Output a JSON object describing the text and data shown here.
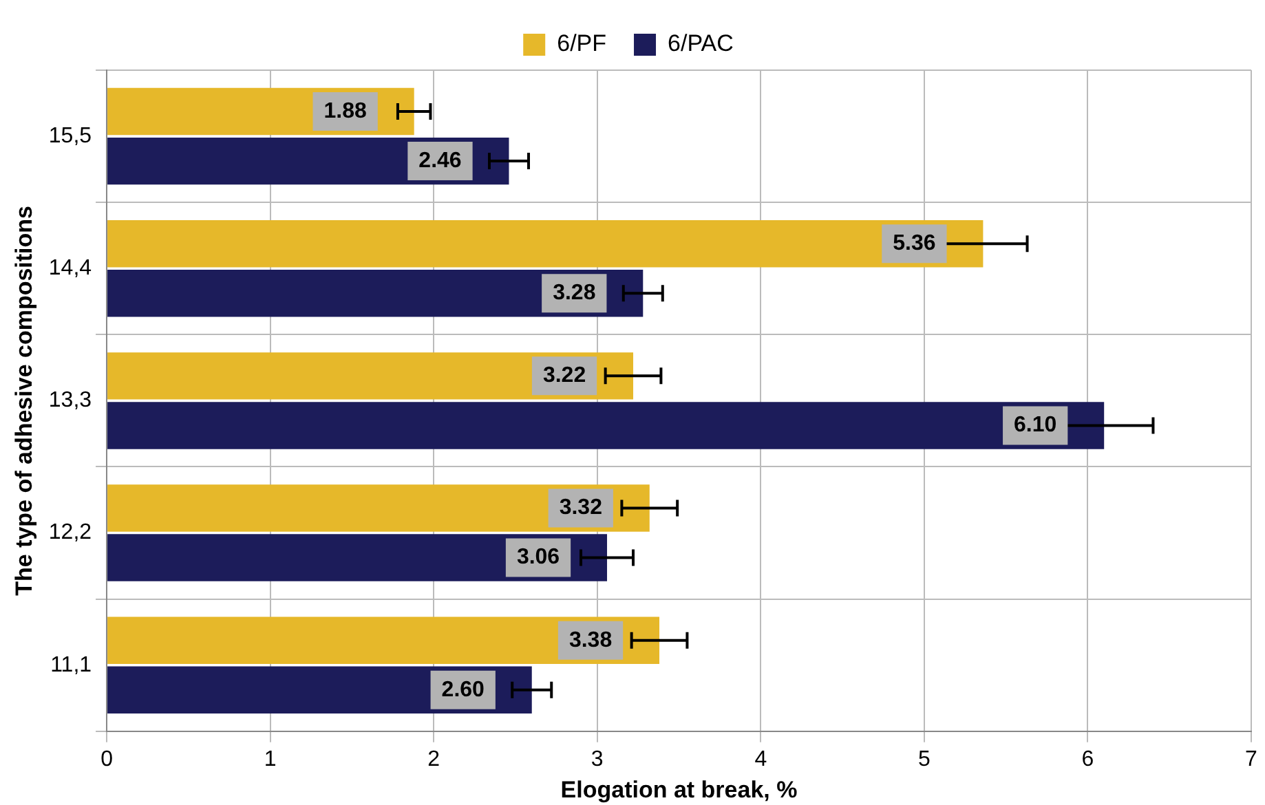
{
  "chart_data": {
    "type": "bar",
    "orientation": "horizontal",
    "xlabel": "Elogation at break, %",
    "ylabel": "The type of adhesive compositions",
    "categories": [
      "15,5",
      "14,4",
      "13,3",
      "12,2",
      "11,1"
    ],
    "series": [
      {
        "name": "6/PF",
        "color": "#e6b82a",
        "values": [
          1.88,
          5.36,
          3.22,
          3.32,
          3.38
        ],
        "value_labels": [
          "1.88",
          "5.36",
          "3.22",
          "3.32",
          "3.38"
        ],
        "errors": [
          0.1,
          0.27,
          0.17,
          0.17,
          0.17
        ]
      },
      {
        "name": "6/PAC",
        "color": "#1c1c5a",
        "values": [
          2.46,
          3.28,
          6.1,
          3.06,
          2.6
        ],
        "value_labels": [
          "2.46",
          "3.28",
          "6.10",
          "3.06",
          "2.60"
        ],
        "errors": [
          0.12,
          0.12,
          0.3,
          0.16,
          0.12
        ]
      }
    ],
    "xlim": [
      0,
      7
    ],
    "xticks": [
      0,
      1,
      2,
      3,
      4,
      5,
      6,
      7
    ],
    "grid": true,
    "legend": "top"
  }
}
